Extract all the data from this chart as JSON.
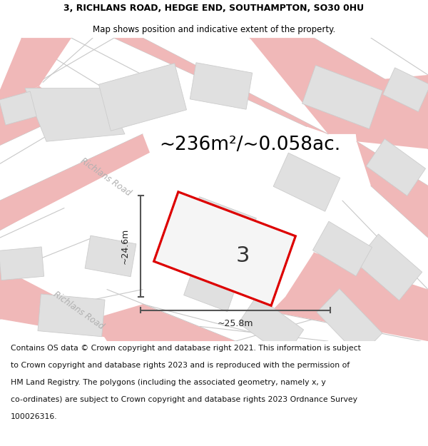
{
  "title_line1": "3, RICHLANS ROAD, HEDGE END, SOUTHAMPTON, SO30 0HU",
  "title_line2": "Map shows position and indicative extent of the property.",
  "area_text": "~236m²/~0.058ac.",
  "property_number": "3",
  "dim_height": "~24.6m",
  "dim_width": "~25.8m",
  "road_label_upper": "Richlans Road",
  "road_label_lower": "Richlans Road",
  "footer_lines": [
    "Contains OS data © Crown copyright and database right 2021. This information is subject",
    "to Crown copyright and database rights 2023 and is reproduced with the permission of",
    "HM Land Registry. The polygons (including the associated geometry, namely x, y",
    "co-ordinates) are subject to Crown copyright and database rights 2023 Ordnance Survey",
    "100026316."
  ],
  "bg_color": "#ffffff",
  "map_bg": "#fafafa",
  "property_fill": "#f0f0f0",
  "property_edge": "#dd0000",
  "road_color": "#f0b8b8",
  "building_fill": "#e0e0e0",
  "building_edge": "#cccccc",
  "dim_line_color": "#555555",
  "road_line_color": "#c8c8c8",
  "title_fontsize": 9.0,
  "subtitle_fontsize": 8.5,
  "area_fontsize": 19,
  "label_fontsize": 9,
  "footer_fontsize": 7.8,
  "property_lw": 2.2
}
